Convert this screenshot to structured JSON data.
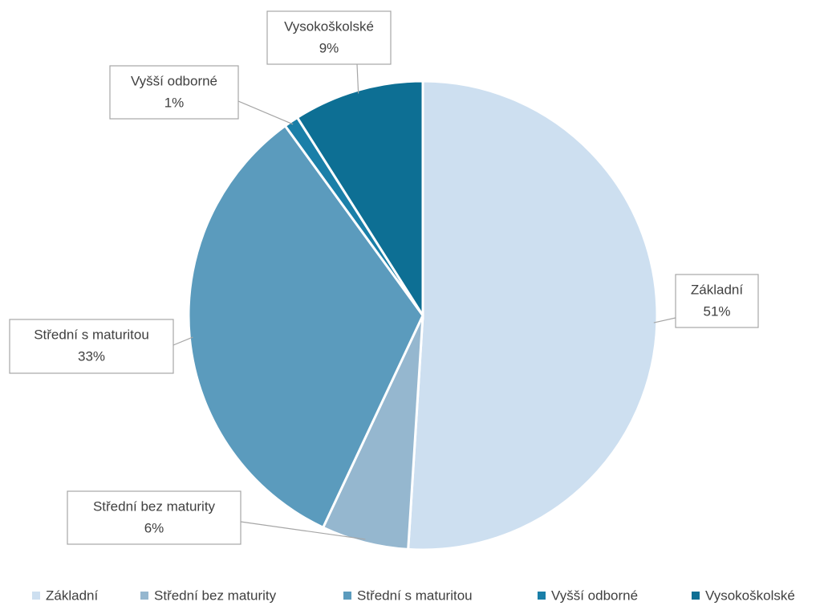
{
  "chart_data": {
    "type": "pie",
    "categories": [
      "Základní",
      "Střední bez maturity",
      "Střední s maturitou",
      "Vyšší odborné",
      "Vysokoškolské"
    ],
    "values": [
      51,
      6,
      33,
      1,
      9
    ],
    "value_labels": [
      "51%",
      "6%",
      "33%",
      "1%",
      "9%"
    ],
    "colors": [
      "#cddff0",
      "#95b7cf",
      "#5b9bbd",
      "#1a7fa8",
      "#0d6f94"
    ],
    "legend": "bottom"
  }
}
